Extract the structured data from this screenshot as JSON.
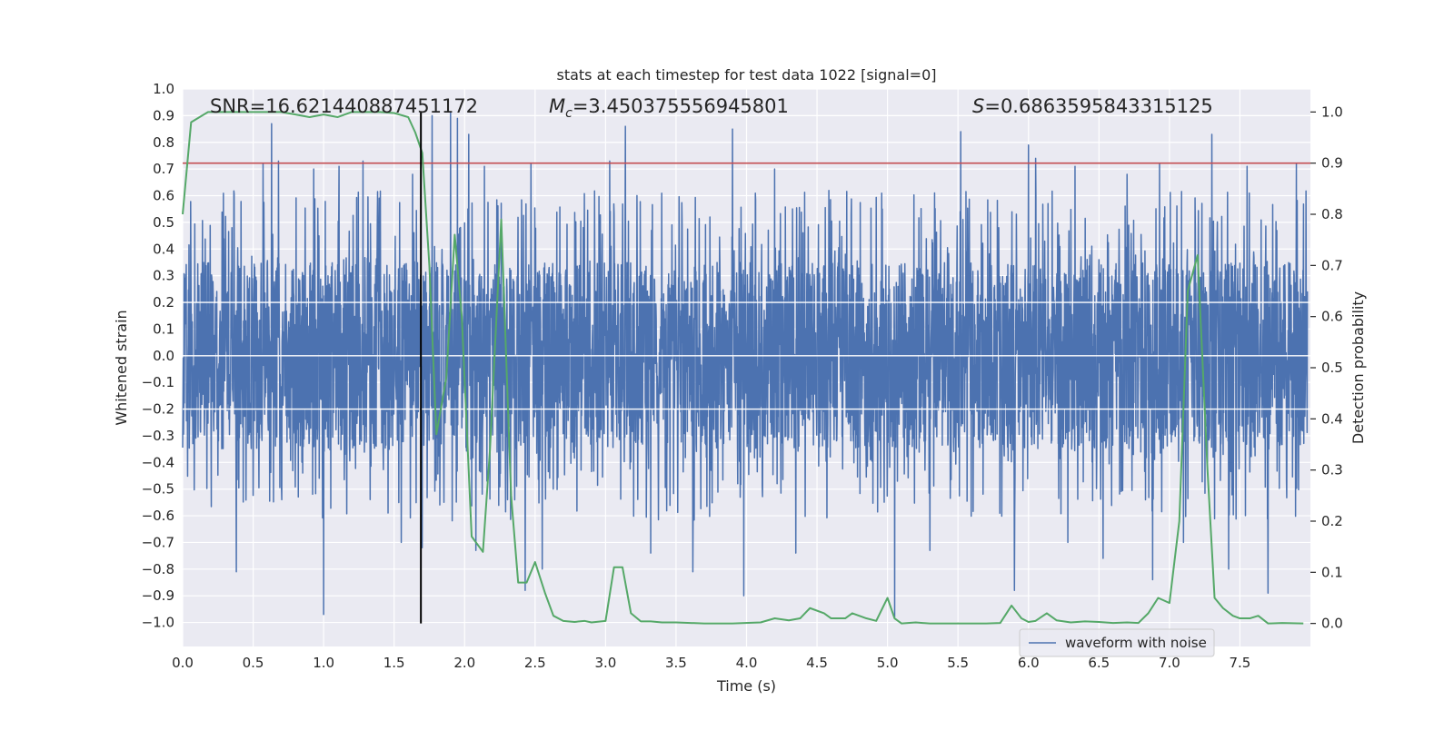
{
  "chart_data": {
    "type": "line",
    "title": "stats at each timestep for test data 1022 [signal=0]",
    "xlabel": "Time (s)",
    "ylabel": "Whitened strain",
    "y2label": "Detection probability",
    "xlim": [
      0.0,
      8.0
    ],
    "ylim": [
      -1.09,
      1.0
    ],
    "y2lim": [
      -0.045,
      1.045
    ],
    "grid": true,
    "x_ticks": [
      0.0,
      0.5,
      1.0,
      1.5,
      2.0,
      2.5,
      3.0,
      3.5,
      4.0,
      4.5,
      5.0,
      5.5,
      6.0,
      6.5,
      7.0,
      7.5
    ],
    "x_tick_labels": [
      "0.0",
      "0.5",
      "1.0",
      "1.5",
      "2.0",
      "2.5",
      "3.0",
      "3.5",
      "4.0",
      "4.5",
      "5.0",
      "5.5",
      "6.0",
      "6.5",
      "7.0",
      "7.5"
    ],
    "y_ticks": [
      1.0,
      0.9,
      0.8,
      0.7,
      0.6,
      0.5,
      0.4,
      0.3,
      0.2,
      0.1,
      0.0,
      -0.1,
      -0.2,
      -0.3,
      -0.4,
      -0.5,
      -0.6,
      -0.7,
      -0.8,
      -0.9,
      -1.0
    ],
    "y_tick_labels": [
      "1.0",
      "0.9",
      "0.8",
      "0.7",
      "0.6",
      "0.5",
      "0.4",
      "0.3",
      "0.2",
      "0.1",
      "0.0",
      "−0.1",
      "−0.2",
      "−0.3",
      "−0.4",
      "−0.5",
      "−0.6",
      "−0.7",
      "−0.8",
      "−0.9",
      "−1.0"
    ],
    "y2_ticks": [
      1.0,
      0.9,
      0.8,
      0.7,
      0.6,
      0.5,
      0.4,
      0.3,
      0.2,
      0.1,
      0.0
    ],
    "y2_tick_labels": [
      "1.0",
      "0.9",
      "0.8",
      "0.7",
      "0.6",
      "0.5",
      "0.4",
      "0.3",
      "0.2",
      "0.1",
      "0.0"
    ],
    "annotations": {
      "snr": "SNR=16.621440887451172",
      "mc_symbol": "M",
      "mc_subscript": "c",
      "mc_value": "=3.450375556945801",
      "s_symbol": "S",
      "s_value": "=0.6863595843315125"
    },
    "threshold": {
      "value": 0.9,
      "axis": "right",
      "color": "#c44e52"
    },
    "vline": {
      "x": 1.69,
      "color": "#000000"
    },
    "waveform": {
      "name": "waveform with noise",
      "color": "#4c72b0",
      "sample_rate_hz": 512,
      "core_amplitude": 0.35,
      "spikes": [
        [
          0.63,
          0.87
        ],
        [
          0.57,
          0.72
        ],
        [
          0.68,
          0.73
        ],
        [
          0.93,
          0.7
        ],
        [
          1.11,
          0.71
        ],
        [
          1.28,
          0.73
        ],
        [
          1.63,
          0.68
        ],
        [
          1.77,
          0.9
        ],
        [
          1.9,
          0.91
        ],
        [
          1.95,
          0.89
        ],
        [
          2.03,
          0.83
        ],
        [
          2.14,
          0.71
        ],
        [
          2.47,
          0.72
        ],
        [
          3.03,
          0.73
        ],
        [
          3.14,
          0.86
        ],
        [
          3.9,
          0.85
        ],
        [
          4.2,
          0.7
        ],
        [
          5.05,
          0.79
        ],
        [
          5.52,
          0.84
        ],
        [
          5.9,
          0.73
        ],
        [
          6.0,
          0.79
        ],
        [
          6.05,
          0.74
        ],
        [
          6.33,
          0.71
        ],
        [
          6.7,
          0.68
        ],
        [
          6.93,
          0.72
        ],
        [
          7.3,
          0.83
        ],
        [
          7.55,
          0.71
        ],
        [
          7.9,
          0.72
        ],
        [
          1.0,
          -0.97
        ],
        [
          0.38,
          -0.81
        ],
        [
          1.55,
          -0.7
        ],
        [
          1.7,
          -0.72
        ],
        [
          2.08,
          -0.73
        ],
        [
          2.43,
          -0.88
        ],
        [
          2.55,
          -0.8
        ],
        [
          3.32,
          -0.74
        ],
        [
          3.62,
          -0.81
        ],
        [
          3.98,
          -0.9
        ],
        [
          4.35,
          -0.74
        ],
        [
          5.05,
          -0.98
        ],
        [
          5.3,
          -0.73
        ],
        [
          5.9,
          -0.88
        ],
        [
          6.28,
          -0.7
        ],
        [
          6.53,
          -0.76
        ],
        [
          6.88,
          -0.84
        ],
        [
          7.1,
          -0.7
        ],
        [
          7.42,
          -0.8
        ],
        [
          7.7,
          -0.89
        ]
      ]
    },
    "probability": {
      "name": "detection probability",
      "color": "#55a868",
      "x": [
        0.0,
        0.06,
        0.12,
        0.18,
        0.3,
        0.5,
        0.7,
        0.8,
        0.9,
        1.0,
        1.1,
        1.2,
        1.3,
        1.4,
        1.5,
        1.6,
        1.65,
        1.7,
        1.75,
        1.8,
        1.87,
        1.93,
        1.98,
        2.05,
        2.13,
        2.18,
        2.26,
        2.33,
        2.38,
        2.44,
        2.5,
        2.57,
        2.63,
        2.7,
        2.78,
        2.85,
        2.9,
        3.0,
        3.06,
        3.12,
        3.18,
        3.25,
        3.32,
        3.4,
        3.5,
        3.7,
        3.9,
        4.1,
        4.2,
        4.3,
        4.38,
        4.45,
        4.55,
        4.6,
        4.7,
        4.75,
        4.85,
        4.92,
        5.0,
        5.05,
        5.1,
        5.2,
        5.3,
        5.5,
        5.7,
        5.8,
        5.88,
        5.95,
        6.0,
        6.05,
        6.13,
        6.2,
        6.3,
        6.4,
        6.5,
        6.6,
        6.7,
        6.78,
        6.85,
        6.92,
        7.0,
        7.07,
        7.13,
        7.2,
        7.27,
        7.32,
        7.38,
        7.45,
        7.5,
        7.57,
        7.63,
        7.7,
        7.8,
        7.95
      ],
      "y": [
        0.8,
        0.98,
        0.99,
        1.0,
        1.0,
        1.0,
        1.0,
        0.995,
        0.99,
        0.995,
        0.99,
        1.0,
        1.0,
        1.0,
        0.998,
        0.99,
        0.96,
        0.92,
        0.7,
        0.37,
        0.48,
        0.76,
        0.6,
        0.17,
        0.14,
        0.34,
        0.79,
        0.25,
        0.08,
        0.08,
        0.12,
        0.06,
        0.015,
        0.005,
        0.003,
        0.005,
        0.002,
        0.005,
        0.11,
        0.11,
        0.02,
        0.004,
        0.004,
        0.002,
        0.002,
        0.0,
        0.0,
        0.002,
        0.01,
        0.006,
        0.01,
        0.03,
        0.02,
        0.01,
        0.01,
        0.02,
        0.01,
        0.005,
        0.05,
        0.01,
        0.0,
        0.002,
        0.0,
        0.0,
        0.0,
        0.001,
        0.035,
        0.01,
        0.003,
        0.005,
        0.02,
        0.006,
        0.002,
        0.004,
        0.003,
        0.001,
        0.002,
        0.001,
        0.02,
        0.05,
        0.04,
        0.2,
        0.65,
        0.72,
        0.3,
        0.05,
        0.03,
        0.015,
        0.01,
        0.01,
        0.015,
        0.0,
        0.001,
        0.0
      ]
    },
    "legend": {
      "location": "lower-right",
      "entries": [
        "waveform with noise"
      ]
    }
  }
}
